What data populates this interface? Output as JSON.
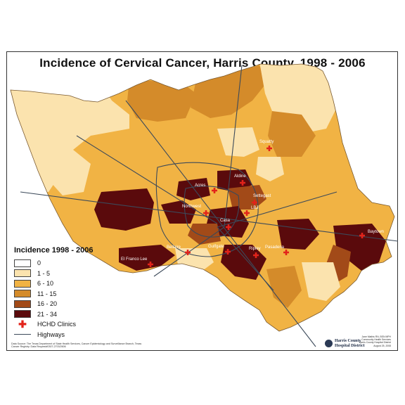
{
  "title": "Incidence  of Cervical Cancer, Harris County, 1998 - 2006",
  "legend": {
    "title": "Incidence 1998 - 2006",
    "classes": [
      {
        "label": "0",
        "color": "#ffffff"
      },
      {
        "label": "1 - 5",
        "color": "#fbe3ae"
      },
      {
        "label": "6 - 10",
        "color": "#f1b344"
      },
      {
        "label": "11 - 15",
        "color": "#d48b2a"
      },
      {
        "label": "16 - 20",
        "color": "#a24a18"
      },
      {
        "label": "21 - 34",
        "color": "#5a0a0c"
      }
    ],
    "clinics_label": "HCHD Clinics",
    "highways_label": "Highways"
  },
  "clinics": [
    "Squatty",
    "Acres",
    "Aldine",
    "Settegast",
    "Northwest",
    "LBJ",
    "Casa",
    "Gulfgate",
    "Bellaire",
    "El Franco Lee",
    "Baytown",
    "Pasadena",
    "Ripley"
  ],
  "source_note": "Data Source: The Texas Department of State Health Services, Cancer Epidemiology and Surveillance Branch, Texas Cancer Registry. Data Request#0307-2703/2606",
  "credits": [
    "Jane Mathis RN, BSN MPH",
    "Community Health Services",
    "Harris County Hospital District",
    "August 25, 2008"
  ],
  "logo": {
    "line1": "Harris County",
    "line2": "Hospital District"
  },
  "colors": {
    "clinic": "#e2231a",
    "highway": "#3c4a5a",
    "outline": "#7a5a30"
  }
}
